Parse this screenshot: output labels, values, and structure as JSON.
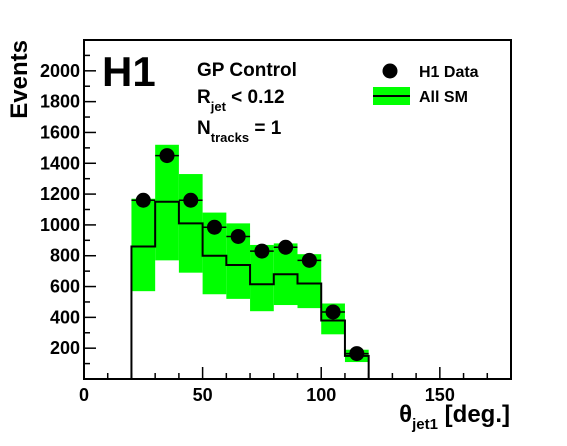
{
  "chart_data": {
    "type": "histogram",
    "logo": "H1",
    "annotations": {
      "control_region": "GP Control",
      "cut1_main": "R",
      "cut1_sub": "jet",
      "cut1_rest": " < 0.12",
      "cut2_main": "N",
      "cut2_sub": "tracks",
      "cut2_rest": " = 1"
    },
    "xlabel_symbol": "θ",
    "xlabel_sub": "jet1",
    "xlabel_rest": " [deg.]",
    "ylabel": "Events",
    "xlim": [
      0,
      180
    ],
    "ylim": [
      0,
      2200
    ],
    "x_ticks": [
      "0",
      "50",
      "100",
      "150"
    ],
    "x_tick_values": [
      0,
      50,
      100,
      150
    ],
    "y_ticks": [
      "200",
      "400",
      "600",
      "800",
      "1000",
      "1200",
      "1400",
      "1600",
      "1800",
      "2000"
    ],
    "y_tick_values": [
      200,
      400,
      600,
      800,
      1000,
      1200,
      1400,
      1600,
      1800,
      2000
    ],
    "legend_position": "top-right",
    "series": [
      {
        "name": "H1 Data",
        "kind": "points",
        "color": "#000000",
        "x": [
          25,
          35,
          45,
          55,
          65,
          75,
          85,
          95,
          105,
          115
        ],
        "y": [
          1160,
          1450,
          1160,
          985,
          925,
          830,
          855,
          770,
          435,
          165
        ]
      },
      {
        "name": "All SM",
        "kind": "step-with-band",
        "color": "#000000",
        "band_color": "#00ff00",
        "bin_edges": [
          20,
          30,
          40,
          50,
          60,
          70,
          80,
          90,
          100,
          110,
          120
        ],
        "values": [
          860,
          1150,
          1010,
          800,
          740,
          615,
          680,
          620,
          380,
          150
        ],
        "band_low": [
          570,
          770,
          690,
          550,
          520,
          440,
          480,
          460,
          290,
          110
        ],
        "band_high": [
          1170,
          1520,
          1330,
          1080,
          1010,
          870,
          880,
          810,
          490,
          190
        ]
      }
    ]
  }
}
